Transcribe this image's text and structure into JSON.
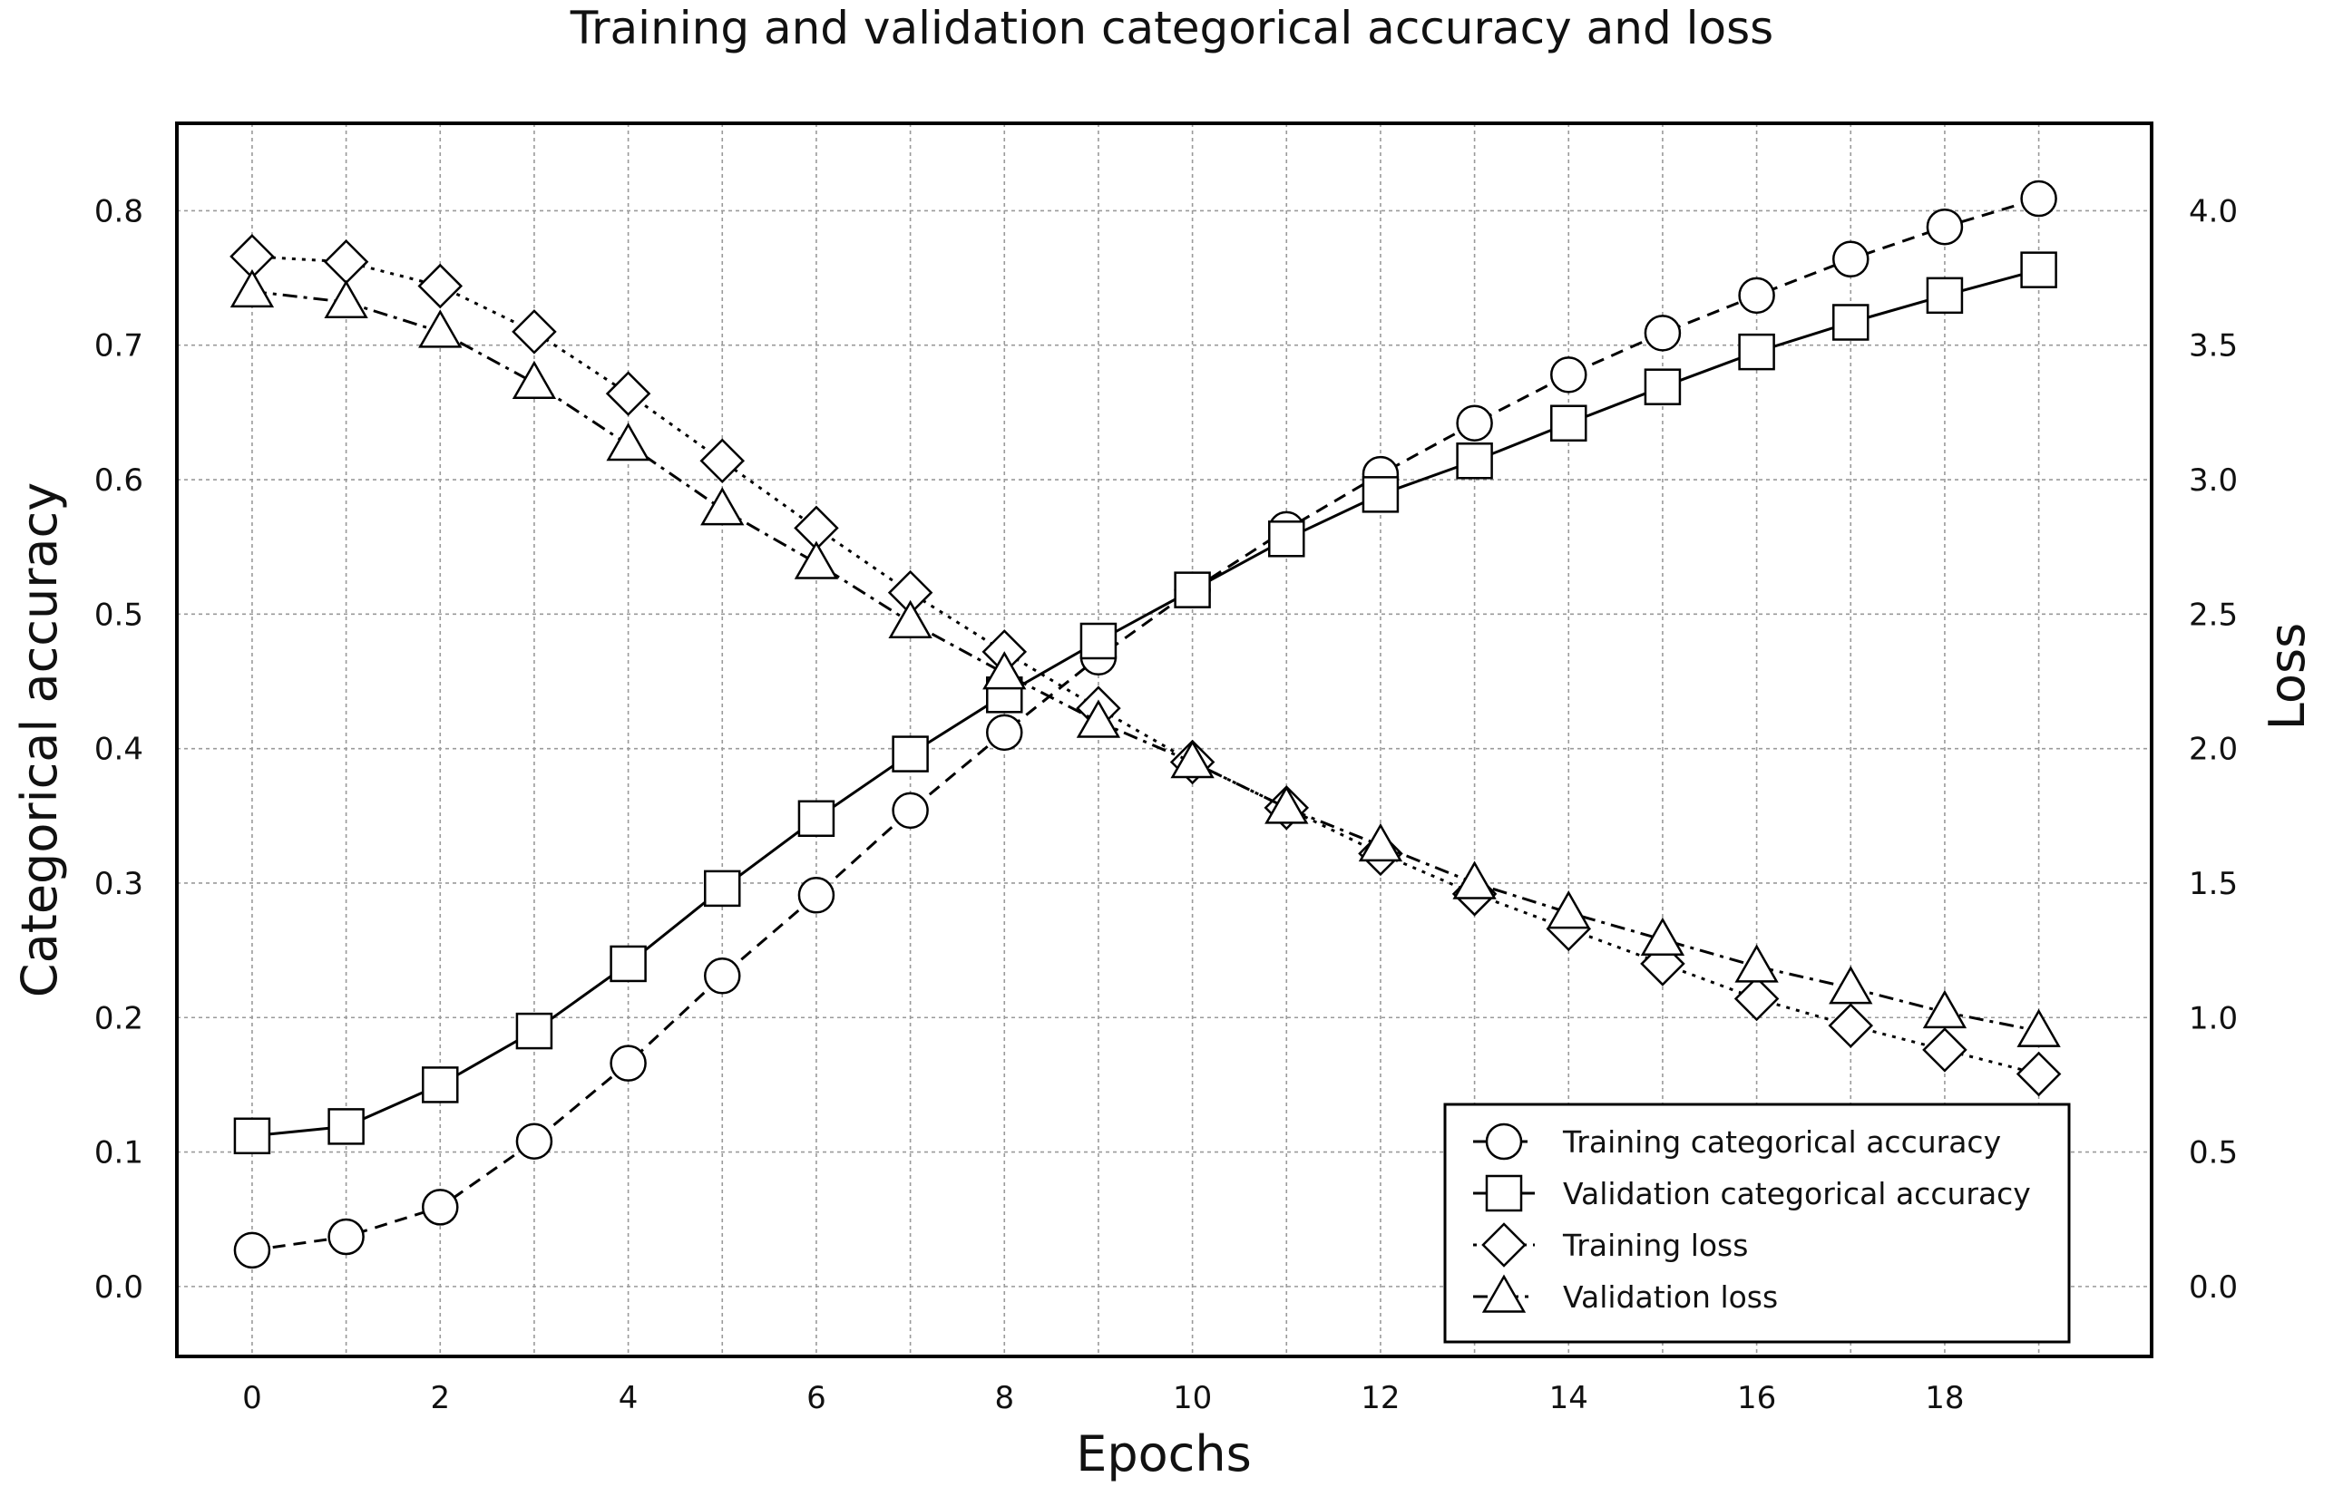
{
  "chart_data": {
    "type": "line",
    "title": "Training and validation categorical accuracy and loss",
    "xlabel": "Epochs",
    "ylabel": "Categorical accuracy",
    "y2label": "Loss",
    "x": [
      0,
      1,
      2,
      3,
      4,
      5,
      6,
      7,
      8,
      9,
      10,
      11,
      12,
      13,
      14,
      15,
      16,
      17,
      18,
      19
    ],
    "xlim": [
      -0.8,
      20.2
    ],
    "ylim": [
      -0.052,
      0.865
    ],
    "y2lim": [
      -0.26,
      4.325
    ],
    "xticks": [
      0,
      2,
      4,
      6,
      8,
      10,
      12,
      14,
      16,
      18
    ],
    "xtick_labels": [
      "0",
      "2",
      "4",
      "6",
      "8",
      "10",
      "12",
      "14",
      "16",
      "18"
    ],
    "yticks": [
      0.0,
      0.1,
      0.2,
      0.3,
      0.4,
      0.5,
      0.6,
      0.7,
      0.8
    ],
    "ytick_labels": [
      "0.0",
      "0.1",
      "0.2",
      "0.3",
      "0.4",
      "0.5",
      "0.6",
      "0.7",
      "0.8"
    ],
    "y2ticks": [
      0.0,
      0.5,
      1.0,
      1.5,
      2.0,
      2.5,
      3.0,
      3.5,
      4.0
    ],
    "y2tick_labels": [
      "0.0",
      "0.5",
      "1.0",
      "1.5",
      "2.0",
      "2.5",
      "3.0",
      "3.5",
      "4.0"
    ],
    "grid": true,
    "legend_position": "bottom-right",
    "series": [
      {
        "name": "Training categorical accuracy",
        "axis": "left",
        "marker": "circle",
        "linestyle": "dashed",
        "values": [
          0.027,
          0.037,
          0.059,
          0.108,
          0.166,
          0.231,
          0.291,
          0.354,
          0.412,
          0.468,
          0.518,
          0.563,
          0.604,
          0.642,
          0.678,
          0.709,
          0.737,
          0.764,
          0.788,
          0.809
        ]
      },
      {
        "name": "Validation categorical accuracy",
        "axis": "left",
        "marker": "square",
        "linestyle": "solid",
        "values": [
          0.112,
          0.119,
          0.15,
          0.19,
          0.24,
          0.296,
          0.348,
          0.396,
          0.44,
          0.48,
          0.518,
          0.556,
          0.589,
          0.614,
          0.642,
          0.669,
          0.695,
          0.717,
          0.737,
          0.756
        ]
      },
      {
        "name": "Training loss",
        "axis": "right",
        "marker": "diamond",
        "linestyle": "dotted",
        "values": [
          3.83,
          3.81,
          3.72,
          3.55,
          3.32,
          3.07,
          2.82,
          2.58,
          2.36,
          2.15,
          1.95,
          1.78,
          1.61,
          1.46,
          1.33,
          1.2,
          1.07,
          0.97,
          0.88,
          0.79
        ]
      },
      {
        "name": "Validation loss",
        "axis": "right",
        "marker": "triangle",
        "linestyle": "dashdot",
        "values": [
          3.7,
          3.66,
          3.55,
          3.36,
          3.13,
          2.89,
          2.69,
          2.47,
          2.28,
          2.1,
          1.95,
          1.78,
          1.64,
          1.5,
          1.39,
          1.29,
          1.19,
          1.11,
          1.02,
          0.95
        ]
      }
    ]
  }
}
